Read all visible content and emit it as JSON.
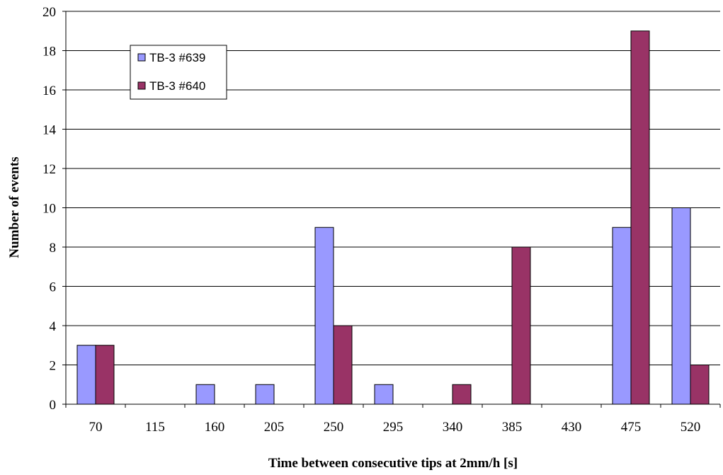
{
  "chart_data": {
    "type": "bar",
    "title": "",
    "xlabel": "Time between consecutive tips at 2mm/h [s]",
    "ylabel": "Number of events",
    "categories": [
      "70",
      "115",
      "160",
      "205",
      "250",
      "295",
      "340",
      "385",
      "430",
      "475",
      "520"
    ],
    "series": [
      {
        "name": "TB-3 #639",
        "color": "#9999ff",
        "values": [
          3,
          0,
          1,
          1,
          9,
          1,
          0,
          0,
          0,
          9,
          10
        ]
      },
      {
        "name": "TB-3 #640",
        "color": "#993366",
        "values": [
          3,
          0,
          0,
          0,
          4,
          0,
          1,
          8,
          0,
          19,
          2
        ]
      }
    ],
    "ylim": [
      0,
      20
    ],
    "yticks": [
      0,
      2,
      4,
      6,
      8,
      10,
      12,
      14,
      16,
      18,
      20
    ],
    "grid": true,
    "legend_position": "top-left"
  }
}
